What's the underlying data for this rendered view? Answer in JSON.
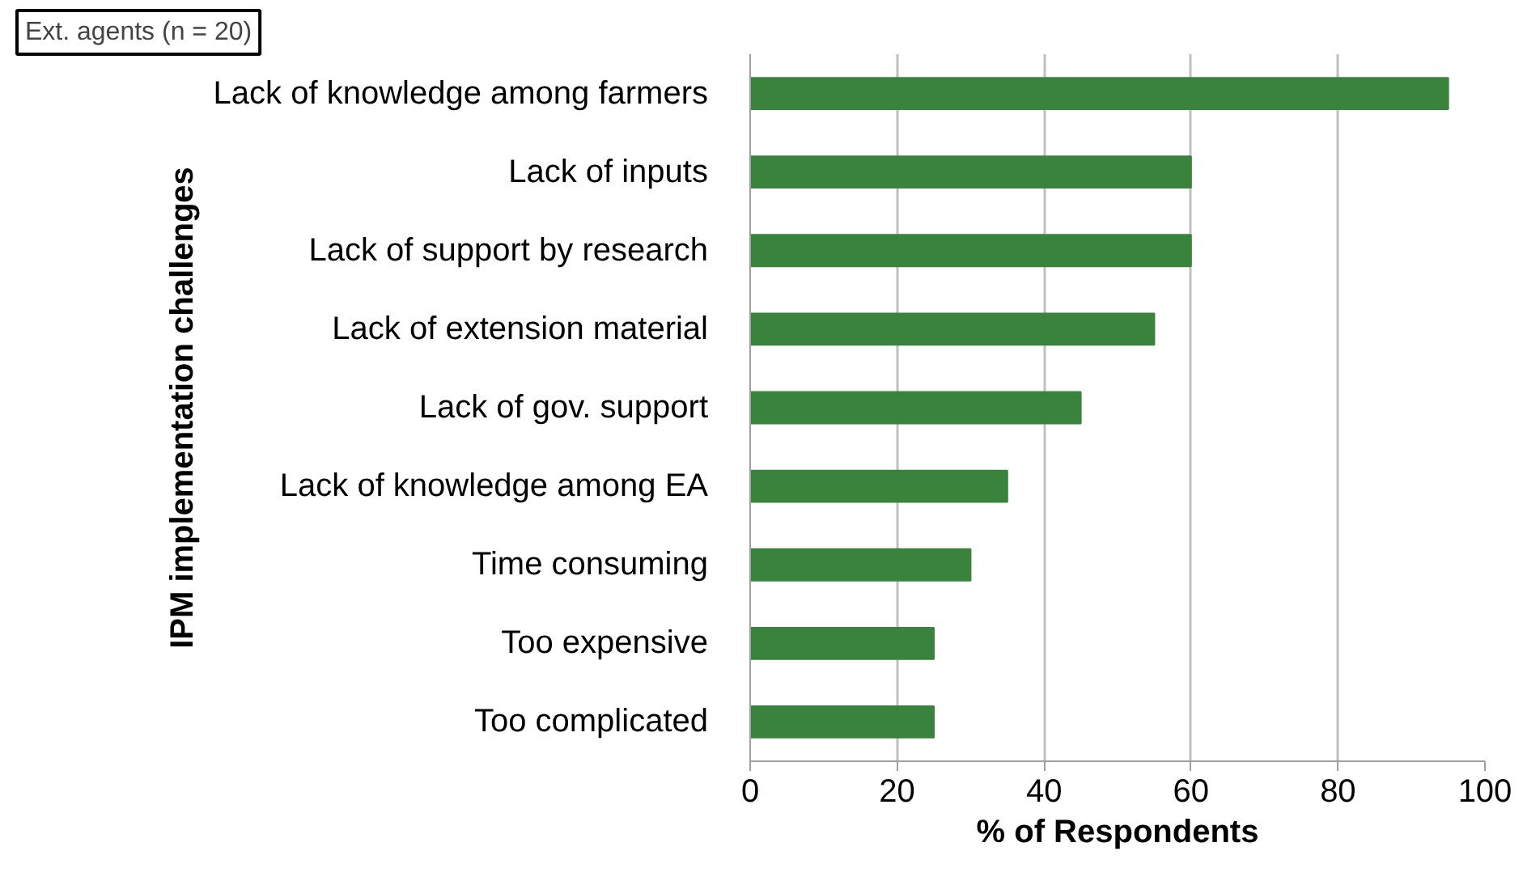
{
  "chart_data": {
    "type": "bar",
    "orientation": "horizontal",
    "categories": [
      "Lack of knowledge among farmers",
      "Lack of inputs",
      "Lack of support by research",
      "Lack of extension material",
      "Lack of gov. support",
      "Lack of knowledge among EA",
      "Time consuming",
      "Too expensive",
      "Too complicated"
    ],
    "values": [
      95,
      60,
      60,
      55,
      45,
      35,
      30,
      25,
      25
    ],
    "color": "#3a833c",
    "xlim": [
      0,
      100
    ],
    "xticks": [
      0,
      20,
      40,
      60,
      80,
      100
    ],
    "xlabel": "% of Respondents",
    "ylabel": "IPM implementation challenges",
    "annotations": [
      "Ext. agents (n = 20)"
    ],
    "grid": "x"
  }
}
